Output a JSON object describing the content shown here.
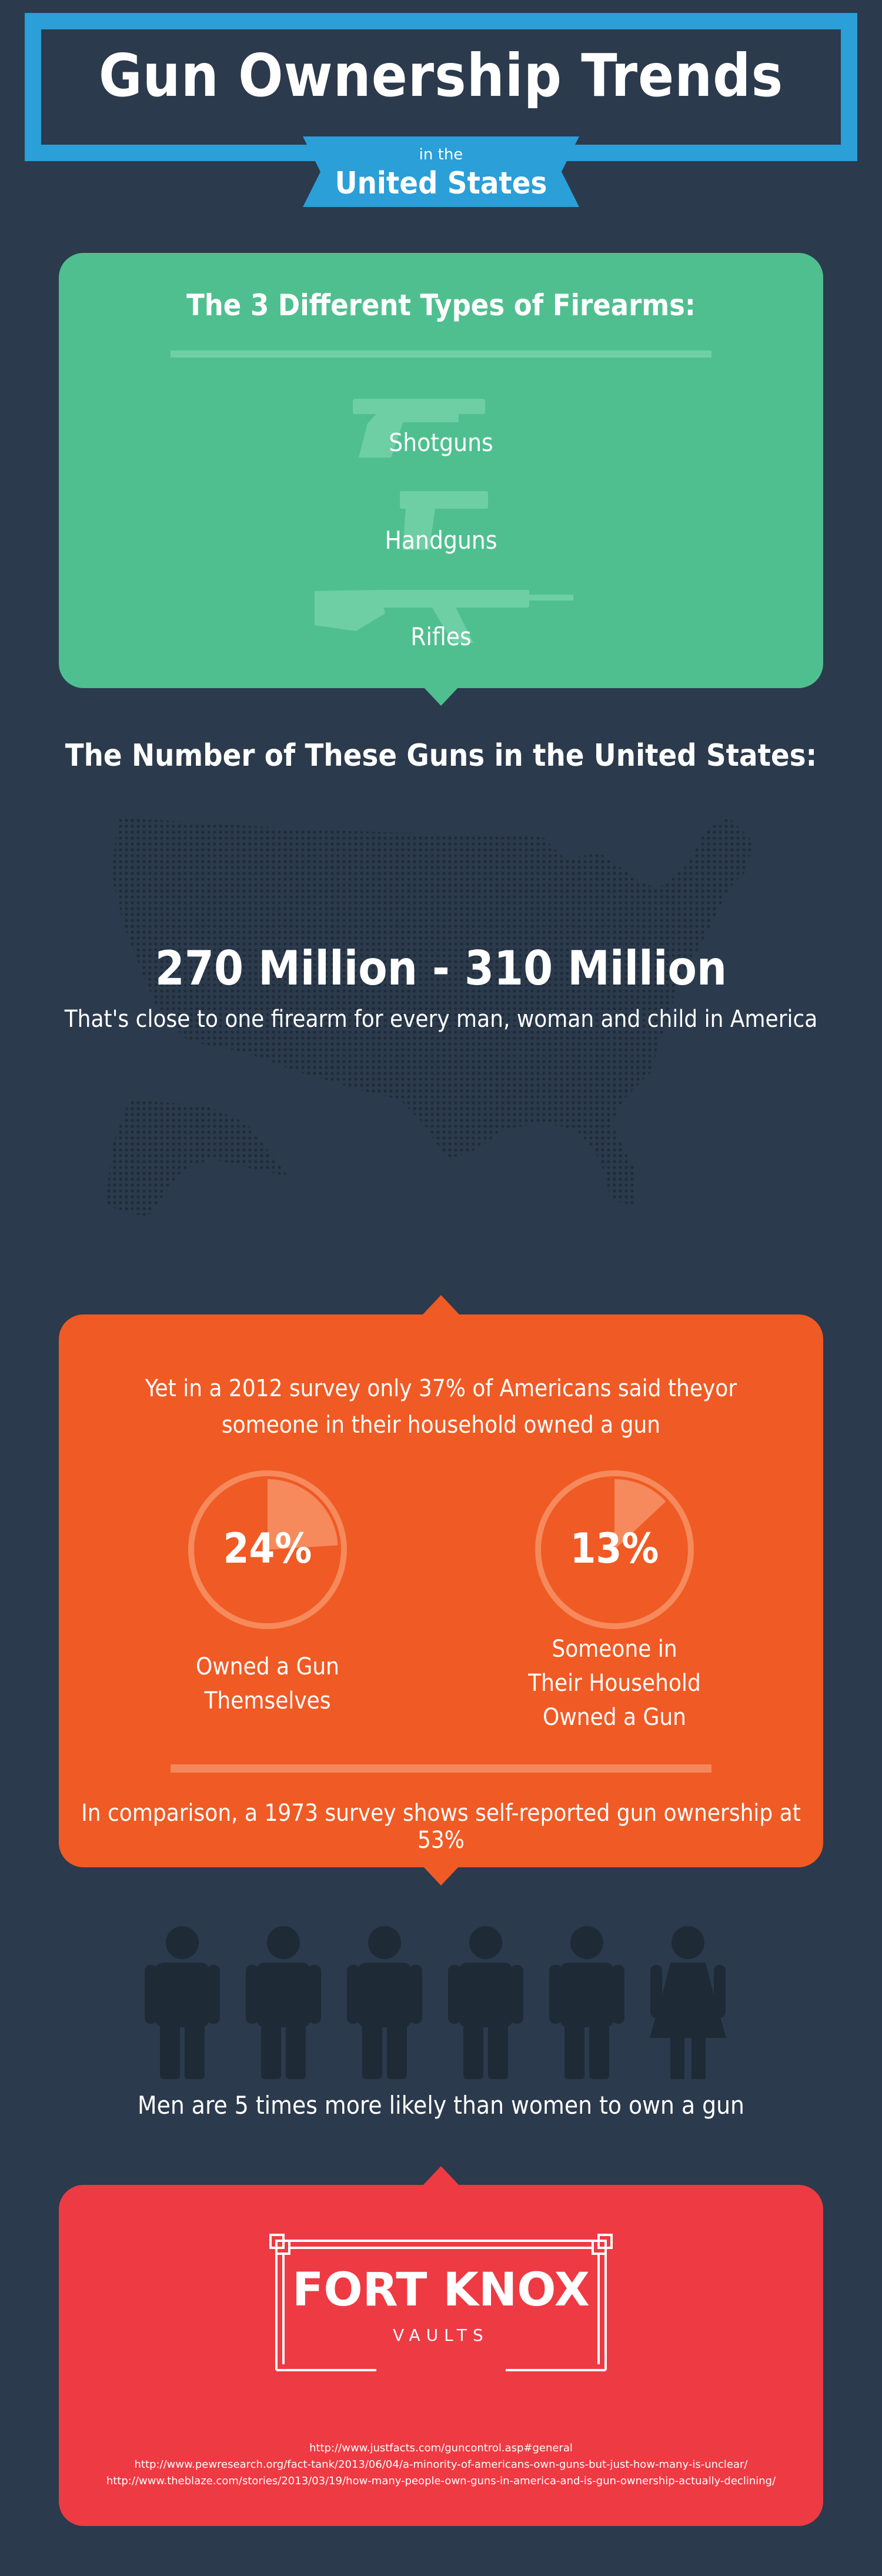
{
  "header": {
    "title": "Gun Ownership Trends",
    "subtitle_small": "in the",
    "subtitle_big": "United States"
  },
  "firearm_types": {
    "title": "The 3 Different Types of Firearms:",
    "items": [
      {
        "label": "Shotguns",
        "icon": "shotgun-icon"
      },
      {
        "label": "Handguns",
        "icon": "handgun-icon"
      },
      {
        "label": "Rifles",
        "icon": "rifle-icon"
      }
    ]
  },
  "gun_count": {
    "title": "The Number of These Guns in the United States:",
    "value": "270 Million - 310 Million",
    "caption": "That's close to one firearm for every man, woman and child in America"
  },
  "survey": {
    "intro": "Yet in a 2012 survey only 37% of Americans said theyor someone in their household owned a gun",
    "stats": [
      {
        "value": "24%",
        "fraction": 0.24,
        "label_lines": [
          "Owned a Gun",
          "Themselves"
        ]
      },
      {
        "value": "13%",
        "fraction": 0.13,
        "label_lines": [
          "Someone in",
          "Their Household",
          "Owned a Gun"
        ]
      }
    ],
    "comparison": "In comparison, a 1973 survey shows self-reported gun ownership at 53%"
  },
  "gender": {
    "men_icons": 5,
    "women_icons": 1,
    "caption": "Men are 5 times more likely than women to own a gun"
  },
  "footer": {
    "logo_top": "FORT KNOX",
    "logo_bottom": "VAULTS",
    "sources": [
      "http://www.justfacts.com/guncontrol.asp#general",
      "http://www.pewresearch.org/fact-tank/2013/06/04/a-minority-of-americans-own-guns-but-just-how-many-is-unclear/",
      "http://www.theblaze.com/stories/2013/03/19/how-many-people-own-guns-in-america-and-is-gun-ownership-actually-declining/"
    ]
  },
  "colors": {
    "background": "#2b3a4c",
    "header_border": "#2a9fd8",
    "green_card": "#50bf90",
    "orange_card": "#f05a24",
    "red_card": "#ee3a43",
    "silhouette": "#1e2a36"
  }
}
